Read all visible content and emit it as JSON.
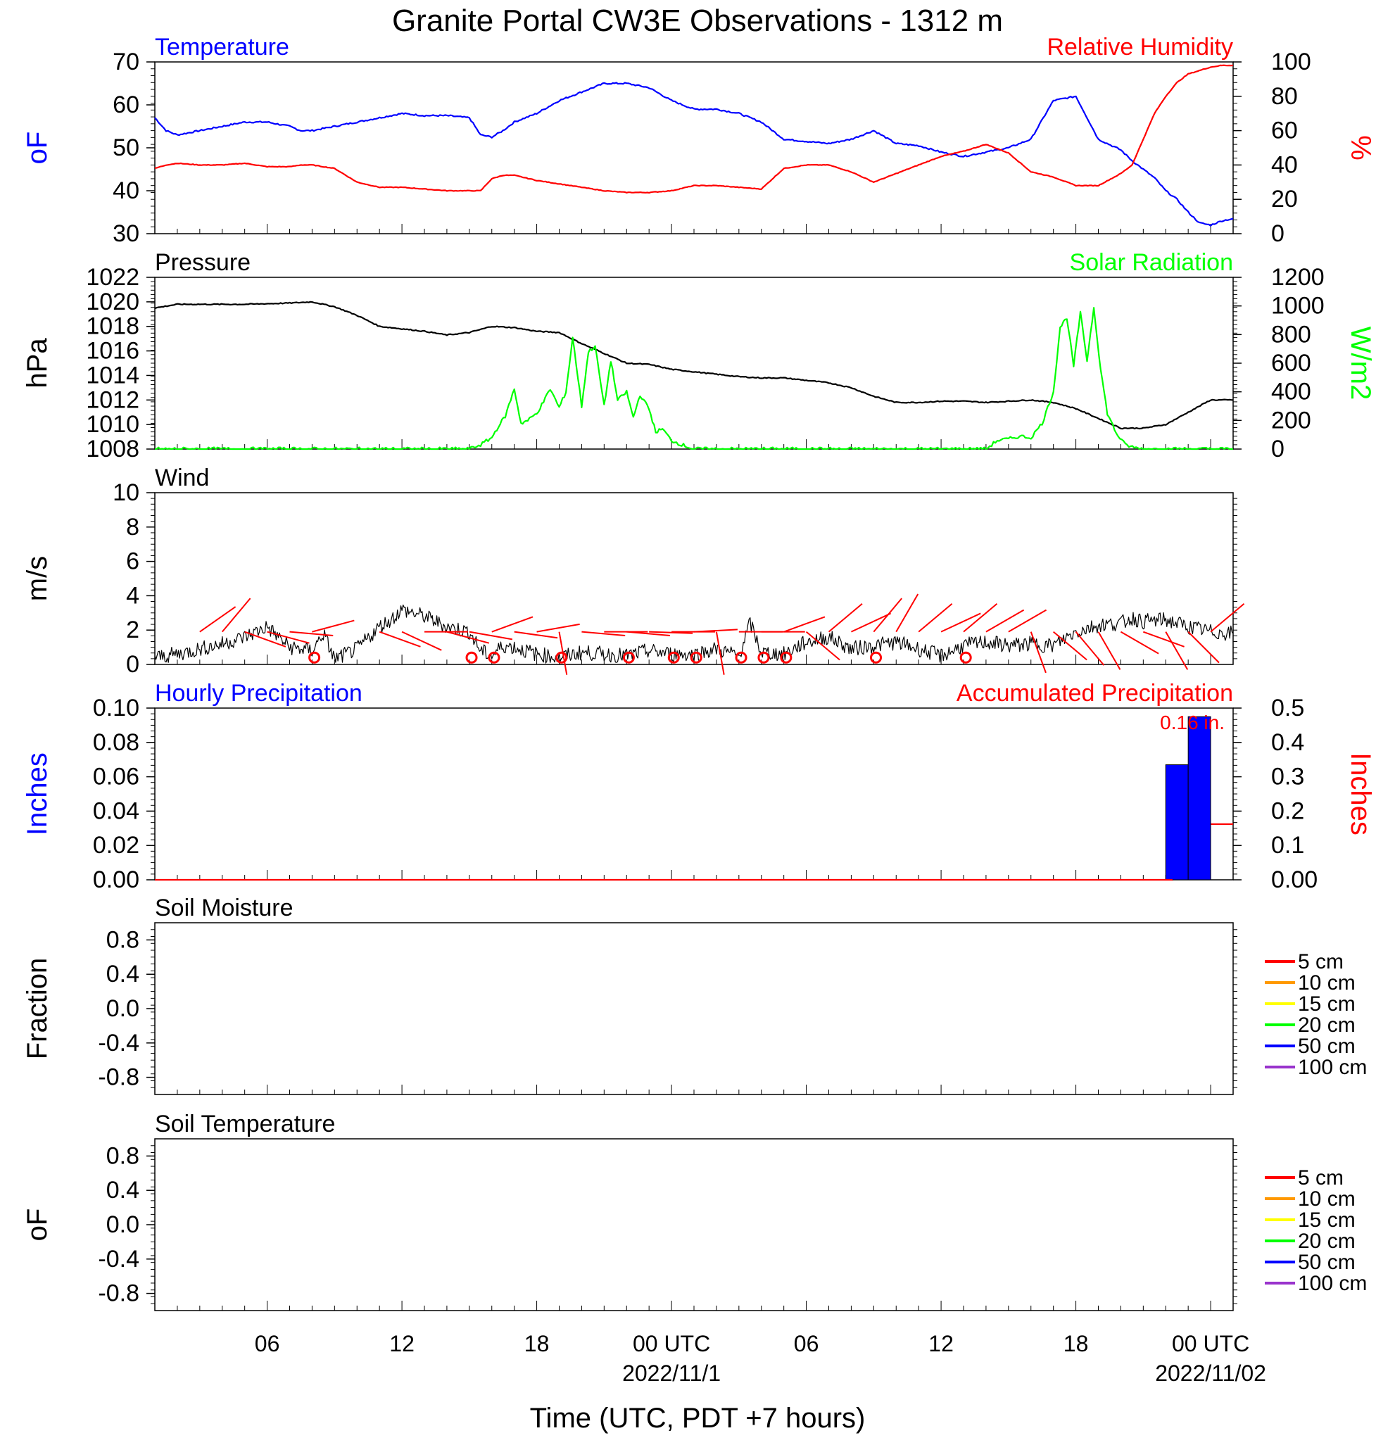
{
  "figure": {
    "title": "Granite Portal CW3E Observations - 1312 m",
    "xlabel": "Time (UTC, PDT +7 hours)",
    "x_ticks": [
      "06",
      "12",
      "18",
      "00 UTC",
      "06",
      "12",
      "18",
      "00 UTC"
    ],
    "date_labels": [
      "2022/11/1",
      "2022/11/02"
    ]
  },
  "chart_data": [
    {
      "type": "line",
      "title_left": "Temperature",
      "title_right": "Relative Humidity",
      "ylabel_left": "oF",
      "ylabel_right": "%",
      "ylim_left": [
        30,
        70
      ],
      "ylim_right": [
        0,
        100
      ],
      "yticks_left": [
        "70",
        "60",
        "50",
        "40",
        "30"
      ],
      "yticks_right": [
        "100",
        "80",
        "60",
        "40",
        "20",
        "0"
      ],
      "x_hours": [
        0,
        0.5,
        1,
        2,
        3,
        4,
        5,
        6,
        6.5,
        7,
        8,
        9,
        10,
        11,
        12,
        13,
        14,
        14.5,
        15,
        15.5,
        16,
        17,
        18,
        19,
        20,
        21,
        22,
        23,
        24,
        25,
        26,
        27,
        28,
        29,
        30,
        31,
        32,
        33,
        34,
        35,
        36,
        37,
        38,
        39,
        40,
        41,
        42,
        43,
        43.5,
        44,
        44.5,
        45,
        45.5,
        46,
        46.5,
        47,
        47.5,
        48
      ],
      "series": [
        {
          "name": "Temperature",
          "axis": "left",
          "color": "#0000ff",
          "values": [
            57,
            54,
            53,
            54,
            55,
            56,
            56,
            55,
            54,
            54,
            55,
            56,
            57,
            58,
            57.5,
            57.5,
            57,
            53,
            52.5,
            54,
            56,
            58,
            61,
            63,
            65,
            65,
            64,
            61,
            59,
            59,
            58,
            56,
            52,
            51.5,
            51,
            52,
            54,
            51,
            50.5,
            49,
            48,
            49,
            50,
            52,
            61,
            62,
            52,
            49.5,
            47,
            45,
            43,
            40,
            38,
            35,
            32.5,
            32,
            33,
            33.5
          ]
        },
        {
          "name": "Relative Humidity",
          "axis": "right",
          "color": "#ff0000",
          "values": [
            38,
            40,
            41,
            40,
            40,
            41,
            39,
            39,
            40,
            40,
            38,
            30,
            27,
            27,
            26,
            25,
            25,
            25,
            32,
            34,
            34,
            31,
            29,
            27,
            25,
            24,
            24,
            25,
            28,
            28,
            27,
            26,
            38,
            40,
            40,
            36,
            30,
            35,
            40,
            45,
            48,
            52,
            47,
            36,
            33,
            28,
            28,
            35,
            40,
            55,
            70,
            80,
            88,
            93,
            95,
            97,
            98,
            98
          ]
        }
      ]
    },
    {
      "type": "line",
      "title_left": "Pressure",
      "title_right": "Solar Radiation",
      "ylabel_left": "hPa",
      "ylabel_right": "W/m2",
      "ylim_left": [
        1008,
        1022
      ],
      "ylim_right": [
        0,
        1200
      ],
      "yticks_left": [
        "1022",
        "1020",
        "1018",
        "1016",
        "1014",
        "1012",
        "1010",
        "1008"
      ],
      "yticks_right": [
        "1200",
        "1000",
        "800",
        "600",
        "400",
        "200",
        "0"
      ],
      "series": [
        {
          "name": "Pressure",
          "axis": "left",
          "color": "#000000",
          "x_hours": [
            0,
            1,
            2,
            4,
            6,
            7,
            8,
            9,
            10,
            11,
            12,
            13,
            14,
            15,
            16,
            17,
            18,
            19,
            20,
            21,
            22,
            23,
            24,
            25,
            26,
            27,
            28,
            29,
            30,
            31,
            32,
            33,
            34,
            35,
            36,
            37,
            38,
            39,
            40,
            41,
            42,
            43,
            44,
            45,
            46,
            47,
            48
          ],
          "values": [
            1019.5,
            1019.8,
            1019.8,
            1019.8,
            1019.9,
            1020.0,
            1019.6,
            1018.9,
            1018.0,
            1017.8,
            1017.6,
            1017.3,
            1017.5,
            1018.0,
            1017.9,
            1017.6,
            1017.5,
            1016.6,
            1015.8,
            1015.0,
            1014.9,
            1014.5,
            1014.3,
            1014.1,
            1013.9,
            1013.8,
            1013.8,
            1013.6,
            1013.4,
            1013.0,
            1012.3,
            1011.8,
            1011.8,
            1011.9,
            1011.9,
            1011.8,
            1011.9,
            1012.0,
            1011.8,
            1011.3,
            1010.5,
            1009.7,
            1009.7,
            1010.0,
            1011.0,
            1012.0,
            1012.0
          ]
        },
        {
          "name": "Solar Radiation",
          "axis": "right",
          "color": "#00ff00",
          "x_hours": [
            0,
            13,
            14,
            14.5,
            15,
            15.3,
            15.6,
            16,
            16.3,
            16.6,
            17,
            17.3,
            17.6,
            18,
            18.3,
            18.6,
            19,
            19.3,
            19.6,
            20,
            20.3,
            20.6,
            21,
            21.3,
            21.6,
            22,
            22.3,
            22.6,
            23,
            23.3,
            24,
            37,
            37.5,
            38,
            38.5,
            39,
            39.5,
            40,
            40.3,
            40.6,
            40.9,
            41.2,
            41.5,
            41.8,
            42.1,
            42.4,
            42.8,
            43.2,
            43.6,
            44,
            48
          ],
          "values": [
            0,
            0,
            0,
            30,
            80,
            160,
            230,
            420,
            180,
            200,
            250,
            330,
            420,
            290,
            400,
            780,
            300,
            680,
            720,
            300,
            620,
            340,
            400,
            220,
            380,
            280,
            120,
            140,
            60,
            40,
            0,
            0,
            60,
            70,
            90,
            80,
            180,
            400,
            850,
            920,
            580,
            950,
            620,
            990,
            560,
            250,
            110,
            30,
            10,
            0,
            0
          ]
        }
      ]
    },
    {
      "type": "line",
      "title_left": "Wind",
      "ylabel_left": "m/s",
      "ylim_left": [
        0,
        10
      ],
      "yticks_left": [
        "10",
        "8",
        "6",
        "4",
        "2",
        "0"
      ],
      "series": [
        {
          "name": "Wind Speed",
          "color": "#000000",
          "x_hours": [
            0,
            1,
            2,
            3,
            4,
            5,
            6,
            7,
            7.5,
            8,
            9,
            10,
            10.5,
            11,
            12,
            13,
            14,
            14.5,
            15,
            15.5,
            16,
            17,
            18,
            19,
            20,
            21,
            22,
            23,
            24,
            25,
            26,
            26.5,
            27,
            28,
            29,
            30,
            31,
            32,
            33,
            34,
            35,
            36,
            37,
            38,
            39,
            40,
            41,
            42,
            43,
            43.5,
            44,
            45,
            46,
            47,
            48
          ],
          "values": [
            0.4,
            0.6,
            0.9,
            1.2,
            1.6,
            2.2,
            1.0,
            0.8,
            1.8,
            0.3,
            0.9,
            2.2,
            2.6,
            3.2,
            2.8,
            2.2,
            1.9,
            0.8,
            0.5,
            1.1,
            1.0,
            0.6,
            0.4,
            0.7,
            0.6,
            0.5,
            0.8,
            0.6,
            0.6,
            0.9,
            0.5,
            2.4,
            0.7,
            0.6,
            1.3,
            1.6,
            0.9,
            1.1,
            1.3,
            0.9,
            0.5,
            1.1,
            1.3,
            1.1,
            1.2,
            1.1,
            1.9,
            2.3,
            2.4,
            2.7,
            2.5,
            2.6,
            2.2,
            1.9,
            1.8
          ]
        }
      ],
      "barbs_hours": [
        2,
        3,
        4,
        5,
        6,
        7,
        10,
        11,
        12,
        13,
        14,
        15,
        16,
        17,
        18,
        19,
        20,
        21,
        22,
        23,
        24,
        25,
        26,
        27,
        28,
        29,
        30,
        31,
        32,
        33,
        34,
        35,
        36,
        37,
        38,
        39,
        40,
        41,
        42,
        43,
        44,
        45,
        46,
        47
      ],
      "calm_hours": [
        7,
        14,
        15,
        18,
        21,
        23,
        24,
        26,
        27,
        28,
        32,
        36
      ]
    },
    {
      "type": "bar",
      "title_left": "Hourly Precipitation",
      "title_right": "Accumulated Precipitation",
      "annotation": "0.16 in.",
      "ylabel_left": "Inches",
      "ylabel_right": "Inches",
      "ylim_left": [
        0,
        0.1
      ],
      "ylim_right": [
        0,
        0.5
      ],
      "yticks_left": [
        "0.10",
        "0.08",
        "0.06",
        "0.04",
        "0.02",
        "0.00"
      ],
      "yticks_right": [
        "0.5",
        "0.4",
        "0.3",
        "0.2",
        "0.1",
        "0.00"
      ],
      "bars": [
        {
          "start_hour": 45,
          "end_hour": 46,
          "value": 0.067,
          "color": "#0000ff"
        },
        {
          "start_hour": 46,
          "end_hour": 47,
          "value": 0.095,
          "color": "#0000ff"
        }
      ],
      "series": [
        {
          "name": "Accumulated Precipitation",
          "axis": "right",
          "color": "#ff0000",
          "x_hours": [
            0,
            45.3,
            45.6,
            46.0,
            46.3,
            46.6,
            46.8,
            48
          ],
          "values": [
            0,
            0,
            0.03,
            0.07,
            0.1,
            0.14,
            0.162,
            0.162
          ]
        }
      ]
    },
    {
      "type": "line",
      "title_left": "Soil Moisture",
      "ylabel_left": "Fraction",
      "ylim_left": [
        -1,
        1
      ],
      "yticks_left": [
        "0.8",
        "0.4",
        "0.0",
        "-0.4",
        "-0.8"
      ],
      "legend": [
        {
          "label": "5 cm",
          "color": "#ff0000"
        },
        {
          "label": "10 cm",
          "color": "#ff9900"
        },
        {
          "label": "15 cm",
          "color": "#ffff00"
        },
        {
          "label": "20 cm",
          "color": "#00ff00"
        },
        {
          "label": "50 cm",
          "color": "#0000ff"
        },
        {
          "label": "100 cm",
          "color": "#9933cc"
        }
      ]
    },
    {
      "type": "line",
      "title_left": "Soil Temperature",
      "ylabel_left": "oF",
      "ylim_left": [
        -1,
        1
      ],
      "yticks_left": [
        "0.8",
        "0.4",
        "0.0",
        "-0.4",
        "-0.8"
      ],
      "legend": [
        {
          "label": "5 cm",
          "color": "#ff0000"
        },
        {
          "label": "10 cm",
          "color": "#ff9900"
        },
        {
          "label": "15 cm",
          "color": "#ffff00"
        },
        {
          "label": "20 cm",
          "color": "#00ff00"
        },
        {
          "label": "50 cm",
          "color": "#0000ff"
        },
        {
          "label": "100 cm",
          "color": "#9933cc"
        }
      ]
    }
  ]
}
